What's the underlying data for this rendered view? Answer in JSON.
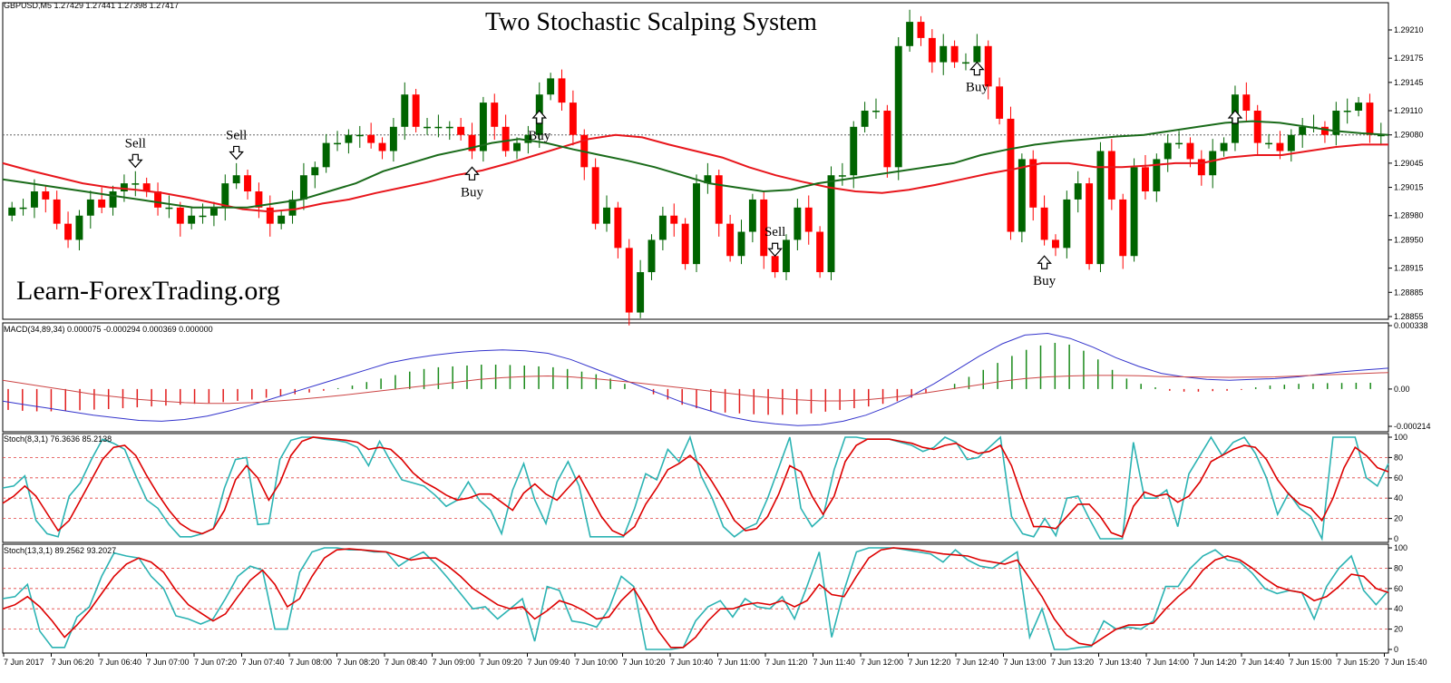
{
  "title": "Two Stochastic Scalping System",
  "watermark": "Learn-ForexTrading.org",
  "main": {
    "header": "GBPUSD,M5  1.27429 1.27441 1.27398 1.27417",
    "ticks": [
      "1.29210",
      "1.29175",
      "1.29145",
      "1.29110",
      "1.29080",
      "1.29045",
      "1.29015",
      "1.28980",
      "1.28950",
      "1.28915",
      "1.28885",
      "1.28855"
    ]
  },
  "macd": {
    "header": "MACD(34,89,34) 0.000075 -0.000294 0.000369 0.000000",
    "ticks": [
      "0.000338",
      "0.00",
      "-0.000214"
    ]
  },
  "stoch1": {
    "header": "Stoch(8,3,1) 76.3636 85.2138",
    "ticks": [
      "100",
      "80",
      "60",
      "40",
      "20",
      "0"
    ]
  },
  "stoch2": {
    "header": "Stoch(13,3,1) 89.2562 93.2027",
    "ticks": [
      "100",
      "80",
      "60",
      "40",
      "20",
      "0"
    ]
  },
  "time_labels": [
    "7 Jun 2017",
    "7 Jun 06:20",
    "7 Jun 06:40",
    "7 Jun 07:00",
    "7 Jun 07:20",
    "7 Jun 07:40",
    "7 Jun 08:00",
    "7 Jun 08:20",
    "7 Jun 08:40",
    "7 Jun 09:00",
    "7 Jun 09:20",
    "7 Jun 09:40",
    "7 Jun 10:00",
    "7 Jun 10:20",
    "7 Jun 10:40",
    "7 Jun 11:00",
    "7 Jun 11:20",
    "7 Jun 11:40",
    "7 Jun 12:00",
    "7 Jun 12:20",
    "7 Jun 12:40",
    "7 Jun 13:00",
    "7 Jun 13:20",
    "7 Jun 13:40",
    "7 Jun 14:00",
    "7 Jun 14:20",
    "7 Jun 14:40",
    "7 Jun 15:00",
    "7 Jun 15:20",
    "7 Jun 15:40"
  ],
  "signals": [
    {
      "text": "Sell",
      "dir": "down",
      "i": 11
    },
    {
      "text": "Sell",
      "dir": "down",
      "i": 20
    },
    {
      "text": "Buy",
      "dir": "up",
      "i": 41
    },
    {
      "text": "Buy",
      "dir": "up",
      "i": 47
    },
    {
      "text": "Sell",
      "dir": "down",
      "i": 68
    },
    {
      "text": "Buy",
      "dir": "up",
      "i": 86
    },
    {
      "text": "Buy",
      "dir": "up",
      "i": 92
    },
    {
      "text": "",
      "dir": "up",
      "i": 109
    }
  ],
  "colors": {
    "bull": "#006400",
    "bear": "#ff0000",
    "ma_red": "#e8161c",
    "ma_green": "#1a6b1a",
    "stoch_main": "#2bb3b3",
    "stoch_signal": "#dd0000",
    "macd_line": "#3333cc",
    "macd_signal": "#cc4444",
    "level": "#e04040"
  },
  "chart_data": [
    {
      "type": "candlestick",
      "title": "Two Stochastic Scalping System",
      "symbol": "GBPUSD,M5",
      "ylim": [
        1.2885,
        1.2923
      ],
      "close": [
        1.2899,
        1.2899,
        1.2901,
        1.29,
        1.2897,
        1.2895,
        1.2898,
        1.29,
        1.2899,
        1.2901,
        1.2902,
        1.2902,
        1.2901,
        1.2899,
        1.2899,
        1.2897,
        1.2898,
        1.2898,
        1.2899,
        1.2902,
        1.2903,
        1.2901,
        1.2899,
        1.2897,
        1.2898,
        1.29,
        1.2903,
        1.2904,
        1.2907,
        1.2907,
        1.2908,
        1.2908,
        1.2907,
        1.2906,
        1.2909,
        1.2913,
        1.2909,
        1.2909,
        1.2909,
        1.2909,
        1.2908,
        1.2906,
        1.2912,
        1.2909,
        1.2906,
        1.2907,
        1.2908,
        1.2913,
        1.2915,
        1.2912,
        1.2908,
        1.2904,
        1.2897,
        1.2899,
        1.2894,
        1.2886,
        1.2891,
        1.2895,
        1.2898,
        1.2897,
        1.2892,
        1.2902,
        1.2903,
        1.2897,
        1.2893,
        1.2896,
        1.29,
        1.2893,
        1.2891,
        1.2895,
        1.2899,
        1.2896,
        1.2891,
        1.2903,
        1.2903,
        1.2909,
        1.2911,
        1.2911,
        1.2904,
        1.2919,
        1.2922,
        1.292,
        1.2917,
        1.2919,
        1.2917,
        1.2917,
        1.2919,
        1.2914,
        1.291,
        1.2896,
        1.2905,
        1.2899,
        1.2895,
        1.2894,
        1.29,
        1.2902,
        1.2892,
        1.2906,
        1.29,
        1.2893,
        1.2904,
        1.2901,
        1.2905,
        1.2907,
        1.2907,
        1.2905,
        1.2903,
        1.2906,
        1.2907,
        1.2913,
        1.2911,
        1.2907,
        1.2907,
        1.2906,
        1.2908,
        1.2909,
        1.2909,
        1.2908,
        1.2911,
        1.2911,
        1.2912,
        1.2908,
        1.2908
      ]
    },
    {
      "type": "line",
      "title": "Moving averages",
      "series": [
        {
          "name": "",
          "values": [
            1.29045,
            1.29036,
            1.29028,
            1.2902,
            1.29015,
            1.29012,
            1.29008,
            1.29002,
            1.28995,
            1.28988,
            1.28985,
            1.28988,
            1.28995,
            1.29,
            1.29008,
            1.29015,
            1.29022,
            1.2903,
            1.29036,
            1.29045,
            1.29055,
            1.29065,
            1.29075,
            1.2908,
            1.29077,
            1.29068,
            1.2906,
            1.29052,
            1.2904,
            1.2903,
            1.29022,
            1.29015,
            1.2901,
            1.29008,
            1.29012,
            1.29018,
            1.29025,
            1.29032,
            1.29038,
            1.29045,
            1.29045,
            1.2904,
            1.2904,
            1.29042,
            1.29045,
            1.29045,
            1.29052,
            1.29055,
            1.29055,
            1.2906,
            1.29065,
            1.29068,
            1.29068
          ]
        },
        {
          "name": "",
          "values": [
            1.29025,
            1.2902,
            1.29015,
            1.2901,
            1.29005,
            1.29,
            1.28995,
            1.2899,
            1.2899,
            1.2899,
            1.28995,
            1.29,
            1.2901,
            1.2902,
            1.29035,
            1.29045,
            1.29055,
            1.29062,
            1.2907,
            1.29075,
            1.2907,
            1.29062,
            1.29055,
            1.29048,
            1.2904,
            1.2903,
            1.2902,
            1.29015,
            1.2901,
            1.29012,
            1.2902,
            1.29025,
            1.2903,
            1.29035,
            1.2904,
            1.29045,
            1.29055,
            1.29062,
            1.29068,
            1.29072,
            1.29075,
            1.29078,
            1.2908,
            1.29085,
            1.2909,
            1.29095,
            1.29097,
            1.29095,
            1.2909,
            1.29085,
            1.29082,
            1.2908
          ]
        }
      ]
    },
    {
      "type": "bar",
      "title": "MACD(34,89,34)",
      "ylim": [
        -0.000214,
        0.000338
      ],
      "histogram": [
        -0.00012,
        -0.000125,
        -0.000128,
        -0.000128,
        -0.000125,
        -0.000122,
        -0.000118,
        -0.000115,
        -0.00011,
        -0.000105,
        -0.0001,
        -9.5e-05,
        -9e-05,
        -8.5e-05,
        -8e-05,
        -7.5e-05,
        -6.8e-05,
        -6e-05,
        -5e-05,
        -4e-05,
        -3e-05,
        -2e-05,
        -1e-05,
        5e-06,
        2e-05,
        4e-05,
        6e-05,
        8e-05,
        0.0001,
        0.000115,
        0.000125,
        0.00013,
        0.000135,
        0.00014,
        0.00014,
        0.000138,
        0.000135,
        0.00013,
        0.000125,
        0.000115,
        0.0001,
        8.5e-05,
        6e-05,
        3e-05,
        0.0,
        -3e-05,
        -6e-05,
        -9e-05,
        -0.00011,
        -0.000125,
        -0.000135,
        -0.00014,
        -0.000145,
        -0.000148,
        -0.000148,
        -0.000145,
        -0.00014,
        -0.00013,
        -0.00012,
        -0.00011,
        -0.0001,
        -8.5e-05,
        -7e-05,
        -5e-05,
        -2.5e-05,
        0.0,
        3e-05,
        7e-05,
        0.00011,
        0.00015,
        0.00019,
        0.000225,
        0.00025,
        0.000265,
        0.000255,
        0.00022,
        0.00017,
        0.00011,
        6e-05,
        3e-05,
        1e-05,
        -1e-05,
        -1.5e-05,
        -1.5e-05,
        -1.2e-05,
        -1e-05,
        -5e-06,
        1e-05,
        2e-05,
        2.5e-05,
        3e-05,
        3.2e-05,
        3.4e-05,
        3.5e-05,
        3.6e-05,
        3.6e-05
      ],
      "series": [
        {
          "name": "",
          "values": [
            -7e-05,
            -9e-05,
            -0.00011,
            -0.00013,
            -0.00015,
            -0.000165,
            -0.00018,
            -0.000185,
            -0.000175,
            -0.000155,
            -0.000125,
            -9e-05,
            -5e-05,
            -1e-05,
            3e-05,
            7e-05,
            0.00011,
            0.00015,
            0.000175,
            0.000195,
            0.00021,
            0.00022,
            0.000225,
            0.00022,
            0.000205,
            0.00017,
            0.00012,
            7e-05,
            2e-05,
            -3e-05,
            -8e-05,
            -0.00012,
            -0.00016,
            -0.000185,
            -0.0002,
            -0.00021,
            -0.000205,
            -0.000185,
            -0.00015,
            -0.0001,
            -4e-05,
            3e-05,
            0.00011,
            0.00019,
            0.00026,
            0.00031,
            0.00032,
            0.00029,
            0.00024,
            0.00018,
            0.00013,
            9e-05,
            7e-05,
            5.5e-05,
            5e-05,
            5.5e-05,
            6e-05,
            7e-05,
            8.5e-05,
            0.0001,
            0.00011,
            0.00012
          ]
        },
        {
          "name": "",
          "values": [
            5e-05,
            3e-05,
            1e-05,
            -1e-05,
            -3e-05,
            -4.5e-05,
            -6e-05,
            -7e-05,
            -7.8e-05,
            -8.2e-05,
            -8.2e-05,
            -7.8e-05,
            -7e-05,
            -6e-05,
            -4.8e-05,
            -3.5e-05,
            -2e-05,
            -5e-06,
            1e-05,
            2.5e-05,
            4e-05,
            5.5e-05,
            6.5e-05,
            7.2e-05,
            7.5e-05,
            7e-05,
            6e-05,
            4.8e-05,
            3.5e-05,
            2e-05,
            5e-06,
            -1e-05,
            -2.5e-05,
            -4e-05,
            -5.2e-05,
            -6.2e-05,
            -6.8e-05,
            -6.8e-05,
            -6.2e-05,
            -5e-05,
            -3.5e-05,
            -1.5e-05,
            5e-06,
            2.5e-05,
            4.5e-05,
            6e-05,
            7e-05,
            7.5e-05,
            7.8e-05,
            7.8e-05,
            7.6e-05,
            7.2e-05,
            7e-05,
            6.8e-05,
            6.7e-05,
            6.8e-05,
            7e-05,
            7.5e-05,
            8e-05,
            8.5e-05,
            9e-05,
            9.5e-05
          ]
        }
      ]
    },
    {
      "type": "line",
      "title": "Stoch(8,3,1)",
      "ylim": [
        0,
        100
      ],
      "levels": [
        80,
        60,
        40,
        20
      ],
      "series": [
        {
          "name": "",
          "values": [
            50,
            52,
            62,
            18,
            5,
            2,
            42,
            55,
            78,
            98,
            94,
            88,
            62,
            38,
            30,
            14,
            2,
            2,
            5,
            10,
            50,
            78,
            80,
            14,
            15,
            78,
            97,
            100,
            100,
            98,
            97,
            95,
            90,
            72,
            96,
            76,
            58,
            55,
            52,
            43,
            32,
            38,
            56,
            38,
            28,
            5,
            48,
            74,
            38,
            15,
            56,
            76,
            52,
            2,
            2,
            2,
            2,
            30,
            64,
            58,
            88,
            76,
            100,
            62,
            40,
            12,
            2,
            10,
            15,
            40,
            70,
            100,
            30,
            12,
            22,
            68,
            100,
            100,
            98,
            98,
            98,
            95,
            92,
            86,
            90,
            100,
            95,
            78,
            80,
            90,
            100,
            22,
            5,
            2,
            20,
            3,
            40,
            42,
            20,
            0,
            0,
            0,
            95,
            40,
            40,
            48,
            12,
            64,
            82,
            100,
            82,
            95,
            100,
            84,
            60,
            24,
            45,
            30,
            22,
            0,
            100,
            100,
            100,
            60,
            52,
            74
          ]
        },
        {
          "name": "",
          "values": [
            35,
            42,
            52,
            42,
            25,
            8,
            18,
            38,
            58,
            78,
            90,
            92,
            82,
            62,
            44,
            28,
            15,
            8,
            5,
            10,
            28,
            58,
            72,
            60,
            38,
            55,
            82,
            96,
            100,
            99,
            98,
            97,
            95,
            88,
            90,
            88,
            78,
            65,
            56,
            50,
            43,
            38,
            40,
            44,
            44,
            36,
            28,
            45,
            54,
            44,
            38,
            50,
            62,
            42,
            22,
            8,
            3,
            12,
            34,
            50,
            68,
            74,
            82,
            72,
            56,
            38,
            18,
            8,
            10,
            22,
            44,
            72,
            66,
            42,
            24,
            42,
            76,
            92,
            98,
            98,
            98,
            96,
            94,
            90,
            88,
            92,
            94,
            88,
            84,
            86,
            92,
            72,
            40,
            12,
            12,
            10,
            22,
            34,
            34,
            22,
            6,
            2,
            32,
            46,
            42,
            44,
            36,
            42,
            56,
            76,
            82,
            88,
            92,
            90,
            78,
            58,
            44,
            34,
            30,
            18,
            40,
            70,
            90,
            82,
            70,
            66
          ]
        }
      ]
    },
    {
      "type": "line",
      "title": "Stoch(13,3,1)",
      "ylim": [
        0,
        100
      ],
      "levels": [
        80,
        60,
        40,
        20
      ],
      "series": [
        {
          "name": "",
          "values": [
            50,
            52,
            64,
            18,
            2,
            2,
            32,
            42,
            72,
            95,
            92,
            90,
            72,
            60,
            33,
            30,
            25,
            30,
            50,
            72,
            82,
            78,
            20,
            20,
            76,
            96,
            100,
            100,
            98,
            98,
            96,
            96,
            82,
            90,
            96,
            84,
            70,
            55,
            40,
            42,
            30,
            40,
            50,
            8,
            62,
            58,
            28,
            26,
            22,
            40,
            72,
            62,
            0,
            0,
            0,
            2,
            28,
            42,
            48,
            32,
            50,
            42,
            40,
            52,
            30,
            62,
            96,
            12,
            58,
            96,
            100,
            100,
            100,
            98,
            96,
            94,
            86,
            98,
            88,
            82,
            80,
            88,
            96,
            12,
            40,
            0,
            0,
            2,
            3,
            28,
            20,
            22,
            20,
            28,
            62,
            62,
            80,
            92,
            98,
            88,
            86,
            75,
            60,
            55,
            58,
            56,
            30,
            62,
            80,
            92,
            58,
            44,
            58
          ]
        },
        {
          "name": "",
          "values": [
            40,
            44,
            52,
            42,
            28,
            12,
            24,
            38,
            55,
            72,
            84,
            90,
            86,
            76,
            58,
            44,
            36,
            28,
            35,
            52,
            68,
            78,
            64,
            42,
            50,
            72,
            90,
            98,
            99,
            98,
            97,
            96,
            92,
            88,
            90,
            90,
            82,
            72,
            60,
            52,
            44,
            40,
            42,
            30,
            38,
            48,
            44,
            38,
            30,
            32,
            48,
            60,
            40,
            18,
            2,
            2,
            12,
            28,
            40,
            40,
            44,
            46,
            44,
            48,
            42,
            48,
            64,
            54,
            52,
            72,
            90,
            98,
            100,
            99,
            98,
            96,
            94,
            93,
            92,
            88,
            86,
            84,
            88,
            70,
            52,
            30,
            14,
            6,
            4,
            12,
            20,
            24,
            24,
            26,
            40,
            52,
            62,
            78,
            88,
            92,
            88,
            80,
            70,
            62,
            58,
            56,
            48,
            52,
            62,
            74,
            72,
            60,
            56
          ]
        }
      ]
    }
  ]
}
